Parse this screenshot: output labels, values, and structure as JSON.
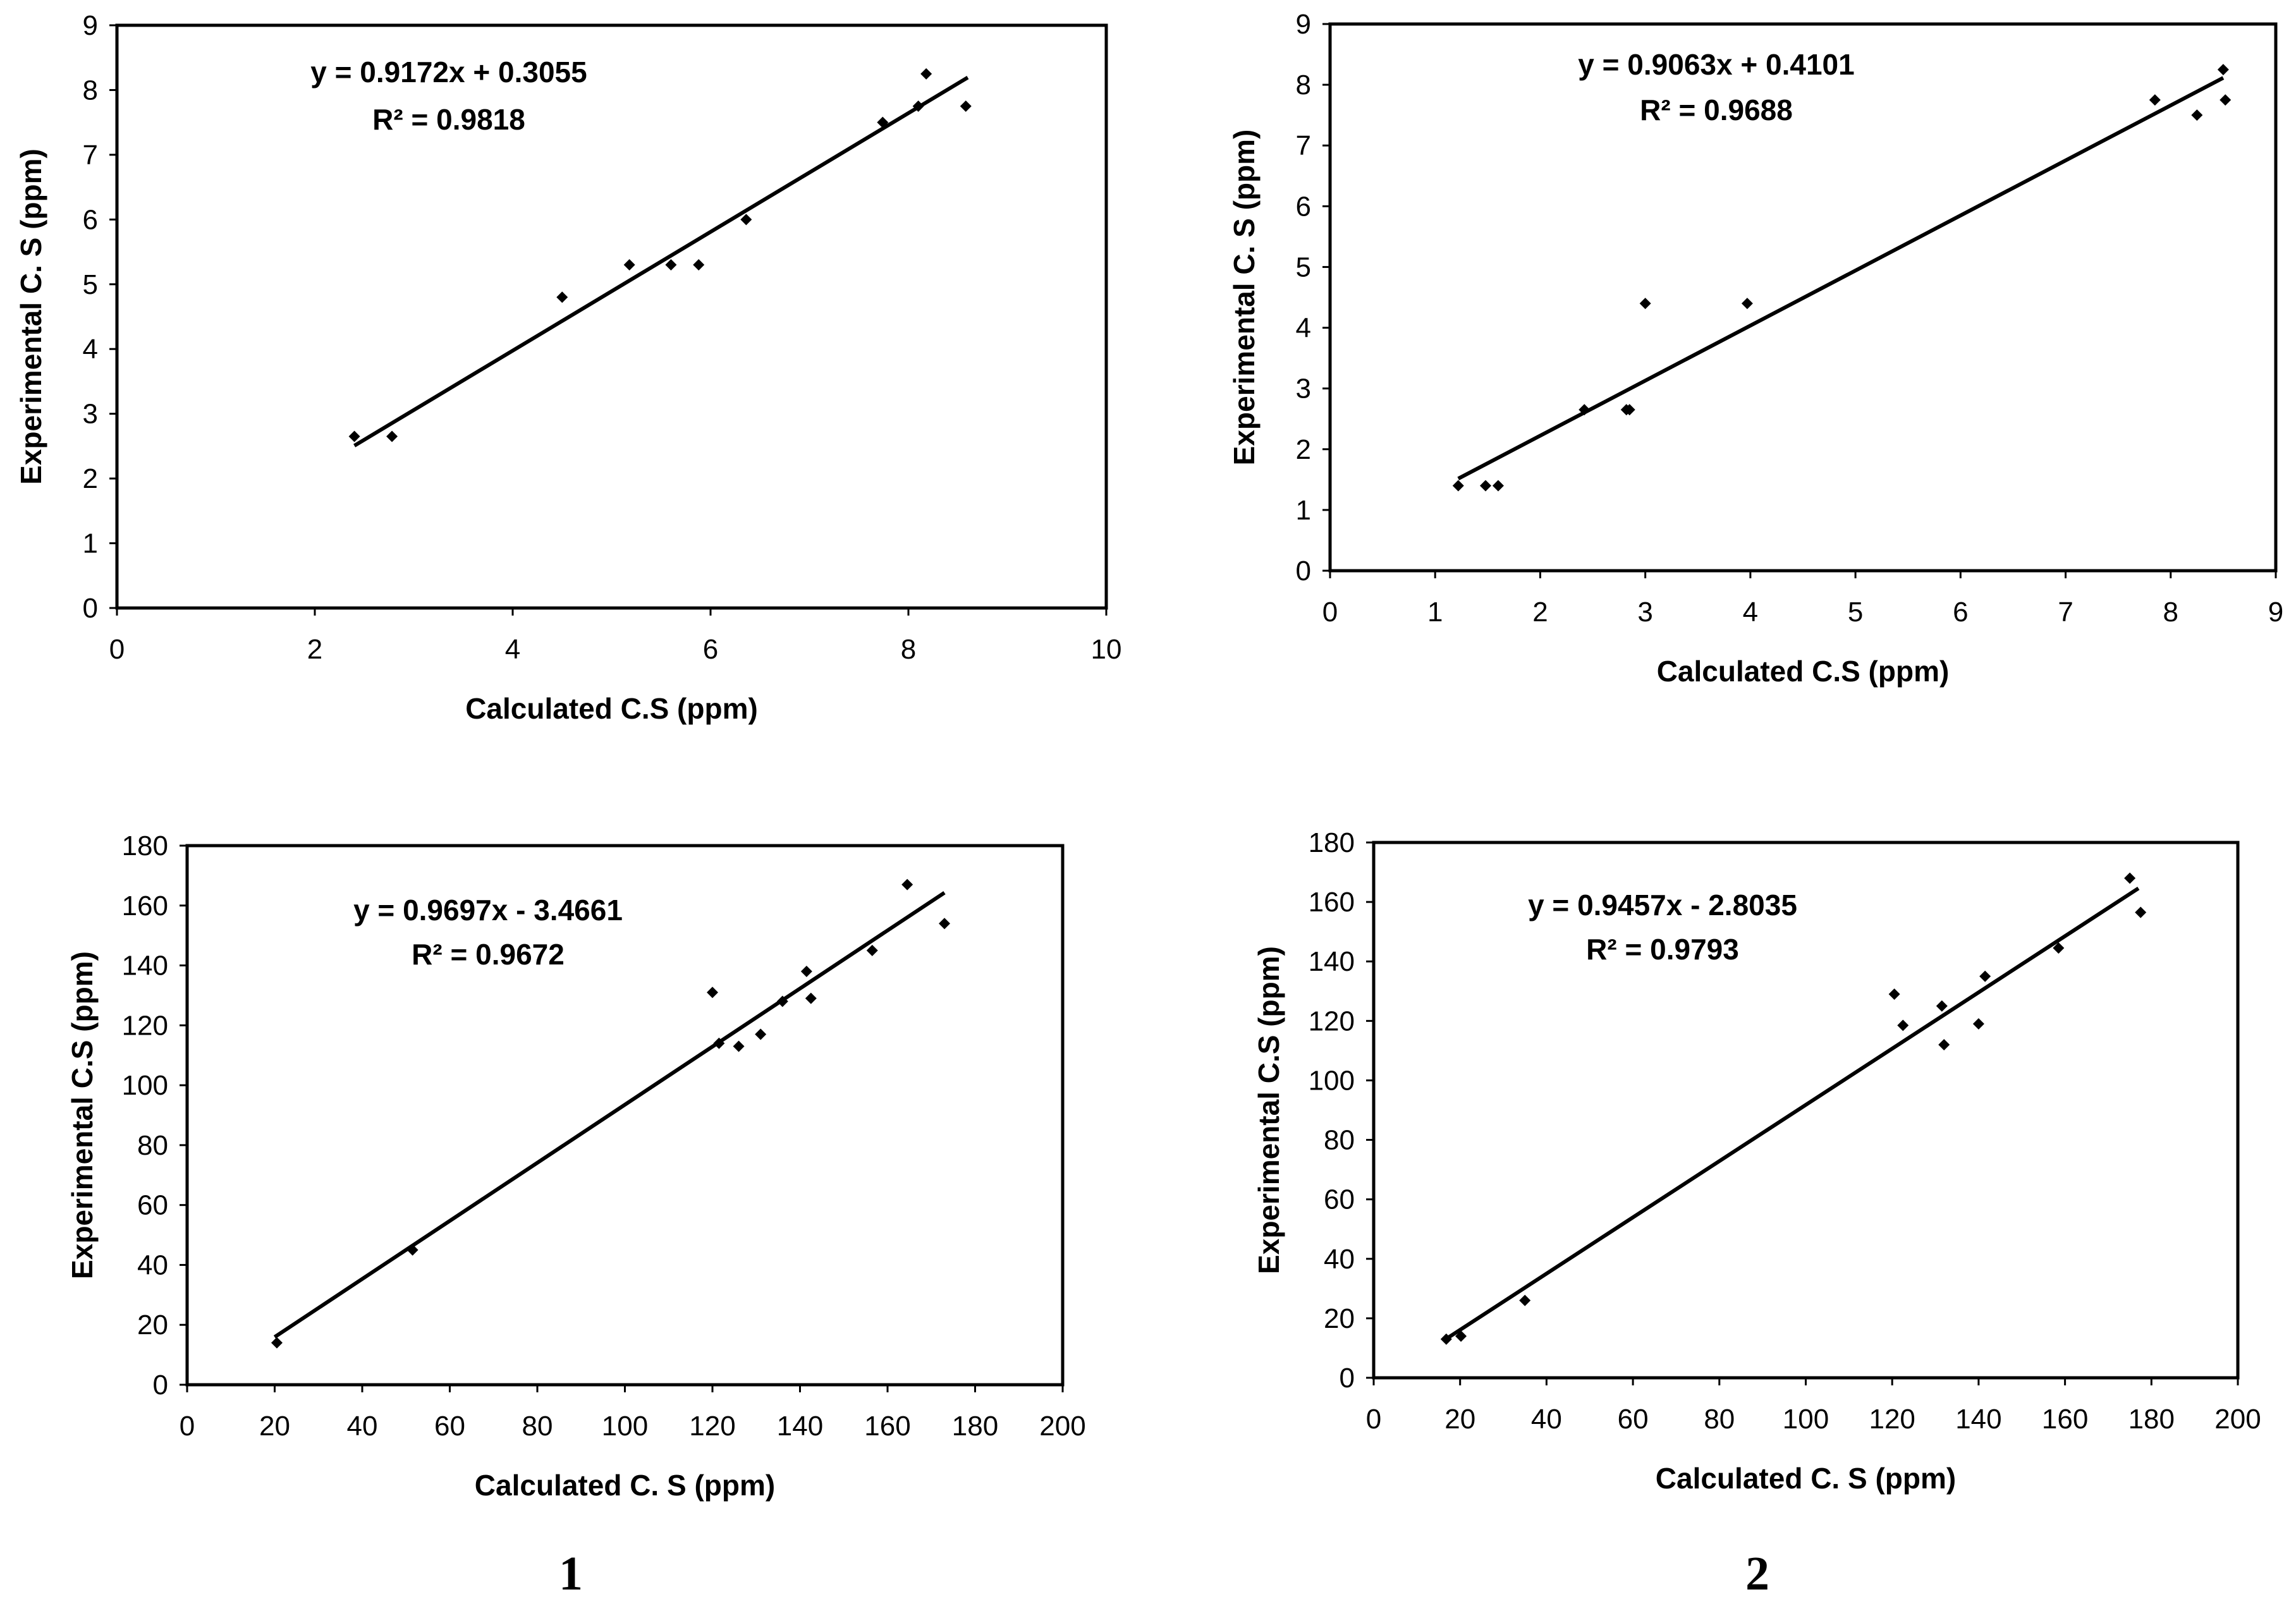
{
  "chart_data": [
    {
      "type": "scatter",
      "xlabel": "Calculated C.S (ppm)",
      "ylabel": "Experimental C. S (ppm)",
      "xlim": [
        0,
        10
      ],
      "ylim": [
        0,
        9
      ],
      "xticks": [
        0,
        2,
        4,
        6,
        8,
        10
      ],
      "yticks": [
        0,
        1,
        2,
        3,
        4,
        5,
        6,
        7,
        8,
        9
      ],
      "equation": "y = 0.9172x + 0.3055",
      "r2": "R² = 0.9818",
      "fit": {
        "slope": 0.9172,
        "intercept": 0.3055,
        "x_range": [
          2.4,
          8.6
        ]
      },
      "x": [
        2.4,
        2.78,
        4.5,
        5.18,
        5.6,
        5.88,
        6.36,
        7.74,
        8.1,
        8.18,
        8.58
      ],
      "y": [
        2.65,
        2.65,
        4.8,
        5.3,
        5.3,
        5.3,
        6.0,
        7.5,
        7.75,
        8.25,
        7.75
      ]
    },
    {
      "type": "scatter",
      "xlabel": "Calculated C.S (ppm)",
      "ylabel": "Experimental C. S (ppm)",
      "xlim": [
        0,
        9
      ],
      "ylim": [
        0,
        9
      ],
      "xticks": [
        0,
        1,
        2,
        3,
        4,
        5,
        6,
        7,
        8,
        9
      ],
      "yticks": [
        0,
        1,
        2,
        3,
        4,
        5,
        6,
        7,
        8,
        9
      ],
      "equation": "y = 0.9063x + 0.4101",
      "r2": "R² = 0.9688",
      "fit": {
        "slope": 0.9063,
        "intercept": 0.4101,
        "x_range": [
          1.22,
          8.5
        ]
      },
      "x": [
        1.22,
        1.48,
        1.6,
        2.42,
        2.82,
        2.85,
        3.0,
        3.97,
        7.85,
        8.25,
        8.5,
        8.52
      ],
      "y": [
        1.4,
        1.4,
        1.4,
        2.65,
        2.65,
        2.65,
        4.4,
        4.4,
        7.75,
        7.5,
        8.25,
        7.75
      ]
    },
    {
      "type": "scatter",
      "xlabel": "Calculated C. S (ppm)",
      "ylabel": "Experimental C.S (ppm)",
      "xlim": [
        0,
        200
      ],
      "ylim": [
        0,
        180
      ],
      "xticks": [
        0,
        20,
        40,
        60,
        80,
        100,
        120,
        140,
        160,
        180,
        200
      ],
      "yticks": [
        0,
        20,
        40,
        60,
        80,
        100,
        120,
        140,
        160,
        180
      ],
      "equation": "y = 0.9697x - 3.4661",
      "r2": "R² = 0.9672",
      "fit": {
        "slope": 0.9697,
        "intercept": -3.4661,
        "x_range": [
          20,
          173
        ]
      },
      "x": [
        20.5,
        51.5,
        120,
        121.5,
        126,
        131,
        136,
        141.5,
        142.5,
        156.5,
        164.5,
        173
      ],
      "y": [
        14,
        45,
        131,
        114,
        113,
        117,
        128,
        138,
        129,
        145,
        167,
        154
      ]
    },
    {
      "type": "scatter",
      "xlabel": "Calculated C. S (ppm)",
      "ylabel": "Experimental C.S (ppm)",
      "xlim": [
        0,
        200
      ],
      "ylim": [
        0,
        180
      ],
      "xticks": [
        0,
        20,
        40,
        60,
        80,
        100,
        120,
        140,
        160,
        180,
        200
      ],
      "yticks": [
        0,
        20,
        40,
        60,
        80,
        100,
        120,
        140,
        160,
        180
      ],
      "equation": "y = 0.9457x - 2.8035",
      "r2": "R² = 0.9793",
      "fit": {
        "slope": 0.9457,
        "intercept": -2.8035,
        "x_range": [
          16.5,
          177
        ]
      },
      "x": [
        16.8,
        20.2,
        35,
        120.5,
        122.5,
        131.5,
        132,
        140,
        141.5,
        158.5,
        175,
        177.5
      ],
      "y": [
        13,
        14,
        26,
        129,
        118.5,
        125,
        112,
        119,
        135,
        144.5,
        168,
        156.5
      ]
    }
  ],
  "labels": [
    "1",
    "2"
  ]
}
